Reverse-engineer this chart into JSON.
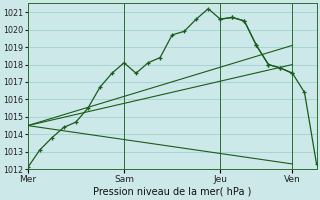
{
  "background_color": "#cce8e8",
  "grid_color": "#99cccc",
  "line_color": "#1a5c1a",
  "title": "Pression niveau de la mer( hPa )",
  "ylim": [
    1012,
    1021.5
  ],
  "yticks": [
    1012,
    1013,
    1014,
    1015,
    1016,
    1017,
    1018,
    1019,
    1020,
    1021
  ],
  "xtick_labels": [
    "Mer",
    "Sam",
    "Jeu",
    "Ven"
  ],
  "xtick_positions": [
    0,
    24,
    48,
    66
  ],
  "xlim": [
    0,
    72
  ],
  "series_main": {
    "x": [
      0,
      3,
      6,
      9,
      12,
      15,
      18,
      21,
      24,
      27,
      30,
      33,
      36,
      39,
      42,
      45,
      48,
      51,
      54,
      57,
      60,
      63,
      66
    ],
    "y": [
      1012.1,
      1013.1,
      1013.8,
      1014.4,
      1014.7,
      1015.5,
      1016.7,
      1017.5,
      1018.1,
      1017.5,
      1018.1,
      1018.4,
      1019.7,
      1019.9,
      1020.6,
      1021.2,
      1020.6,
      1020.7,
      1020.5,
      1019.1,
      1018.0,
      1017.8,
      1017.5
    ],
    "marker": "+"
  },
  "series_straight": [
    {
      "x": [
        0,
        66
      ],
      "y": [
        1014.5,
        1019.1
      ]
    },
    {
      "x": [
        0,
        66
      ],
      "y": [
        1014.5,
        1018.0
      ]
    },
    {
      "x": [
        0,
        66
      ],
      "y": [
        1014.5,
        1012.3
      ]
    }
  ],
  "series_right": {
    "x": [
      48,
      51,
      54,
      57,
      60,
      63,
      66,
      69,
      72
    ],
    "y": [
      1020.6,
      1020.7,
      1020.5,
      1019.1,
      1018.0,
      1017.8,
      1017.5,
      1016.4,
      1012.3
    ],
    "marker": "+"
  },
  "vline_positions": [
    0,
    24,
    48,
    66
  ],
  "figsize": [
    3.2,
    2.0
  ],
  "dpi": 100
}
